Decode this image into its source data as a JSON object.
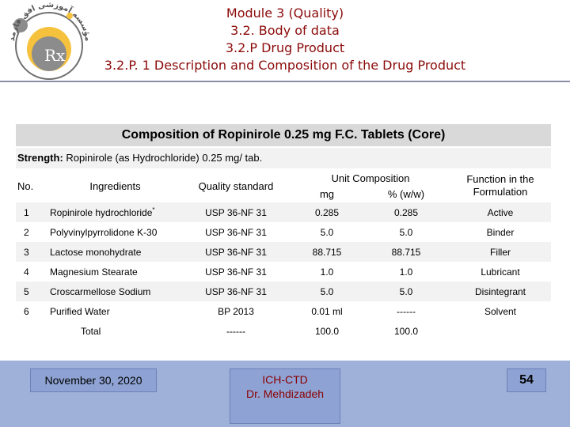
{
  "logo": {
    "arabic_text": "مؤسسه آموزشی افق فارمد",
    "monogram": "Rx"
  },
  "title": {
    "lines": [
      "Module 3 (Quality)",
      "3.2. Body of data",
      "3.2.P Drug Product",
      "3.2.P. 1 Description and Composition of the Drug Product"
    ]
  },
  "composition": {
    "heading": "Composition of  Ropinirole  0.25 mg F.C. Tablets (Core)",
    "strength_label": "Strength:",
    "strength_value": " Ropinirole (as Hydrochloride) 0.25 mg/ tab.",
    "headers": {
      "no": "No.",
      "ingredients": "Ingredients",
      "quality_standard": "Quality standard",
      "unit_composition": "Unit Composition",
      "mg": "mg",
      "pct": "% (w/w)",
      "function": "Function in the Formulation"
    },
    "rows": [
      {
        "no": "1",
        "ingredient": "Ropinirole hydrochloride",
        "mark": "*",
        "standard": "USP 36-NF 31",
        "mg": "0.285",
        "pct": "0.285",
        "function": "Active"
      },
      {
        "no": "2",
        "ingredient": "Polyvinylpyrrolidone K-30",
        "mark": "",
        "standard": "USP 36-NF 31",
        "mg": "5.0",
        "pct": "5.0",
        "function": "Binder"
      },
      {
        "no": "3",
        "ingredient": "Lactose monohydrate",
        "mark": "",
        "standard": "USP 36-NF 31",
        "mg": "88.715",
        "pct": "88.715",
        "function": "Filler"
      },
      {
        "no": "4",
        "ingredient": "Magnesium Stearate",
        "mark": "",
        "standard": "USP 36-NF 31",
        "mg": "1.0",
        "pct": "1.0",
        "function": "Lubricant"
      },
      {
        "no": "5",
        "ingredient": "Croscarmellose Sodium",
        "mark": "",
        "standard": "USP 36-NF 31",
        "mg": "5.0",
        "pct": "5.0",
        "function": "Disintegrant"
      },
      {
        "no": "6",
        "ingredient": "Purified Water",
        "mark": "",
        "standard": "BP 2013",
        "mg": "0.01 ml",
        "pct": "------",
        "function": "Solvent"
      }
    ],
    "total": {
      "label": "Total",
      "standard": "------",
      "mg": "100.0",
      "pct": "100.0"
    }
  },
  "footer": {
    "date": "November 30, 2020",
    "center_line1": "ICH-CTD",
    "center_line2": "Dr. Mehdizadeh",
    "page": "54"
  },
  "colors": {
    "title": "#8b0a0a",
    "footer_band": "#9fb0d9",
    "footer_box": "#8ea3d4",
    "row_shade": "#f2f2f2",
    "heading_bg": "#d9d9d9"
  }
}
